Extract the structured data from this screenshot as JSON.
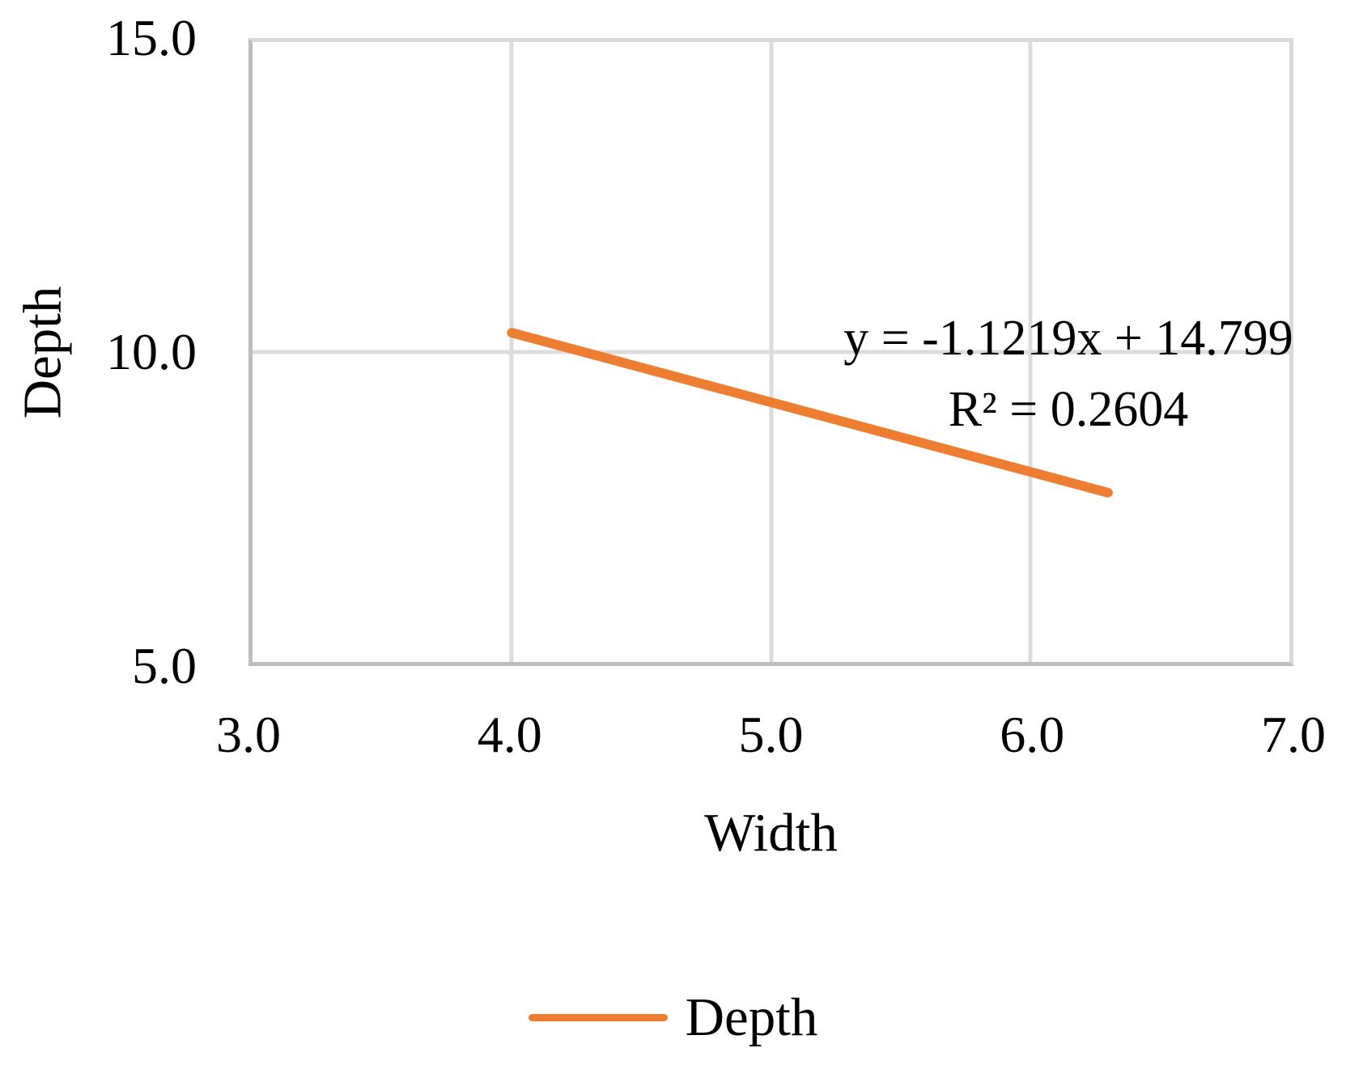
{
  "chart_data": {
    "type": "line",
    "title": "",
    "xlabel": "Width",
    "ylabel": "Depth",
    "xlim": [
      3.0,
      7.0
    ],
    "ylim": [
      5.0,
      15.0
    ],
    "xtick_labels": [
      "3.0",
      "4.0",
      "5.0",
      "6.0",
      "7.0"
    ],
    "xtick_values": [
      3.0,
      4.0,
      5.0,
      6.0,
      7.0
    ],
    "ytick_labels": [
      "5.0",
      "10.0",
      "15.0"
    ],
    "ytick_values": [
      5.0,
      10.0,
      15.0
    ],
    "grid": true,
    "legend_position": "bottom",
    "series": [
      {
        "name": "Depth",
        "kind": "trendline",
        "color": "#ED7D31",
        "slope": -1.1219,
        "intercept": 14.799,
        "x_start": 4.0,
        "x_end": 6.3,
        "points": [
          [
            4.0,
            10.31
          ],
          [
            6.3,
            7.73
          ]
        ]
      }
    ],
    "annotation": {
      "equation": "y = -1.1219x + 14.799",
      "r_squared": "R² = 0.2604"
    }
  },
  "legend": {
    "items": [
      {
        "label": "Depth",
        "color": "#ED7D31"
      }
    ]
  },
  "colors": {
    "trendline": "#ED7D31",
    "gridline": "#DCDCDC",
    "plot_boundary": "#D9D9D9",
    "axis_line": "#BDBDBD",
    "text": "#000000",
    "background": "#FFFFFF"
  }
}
